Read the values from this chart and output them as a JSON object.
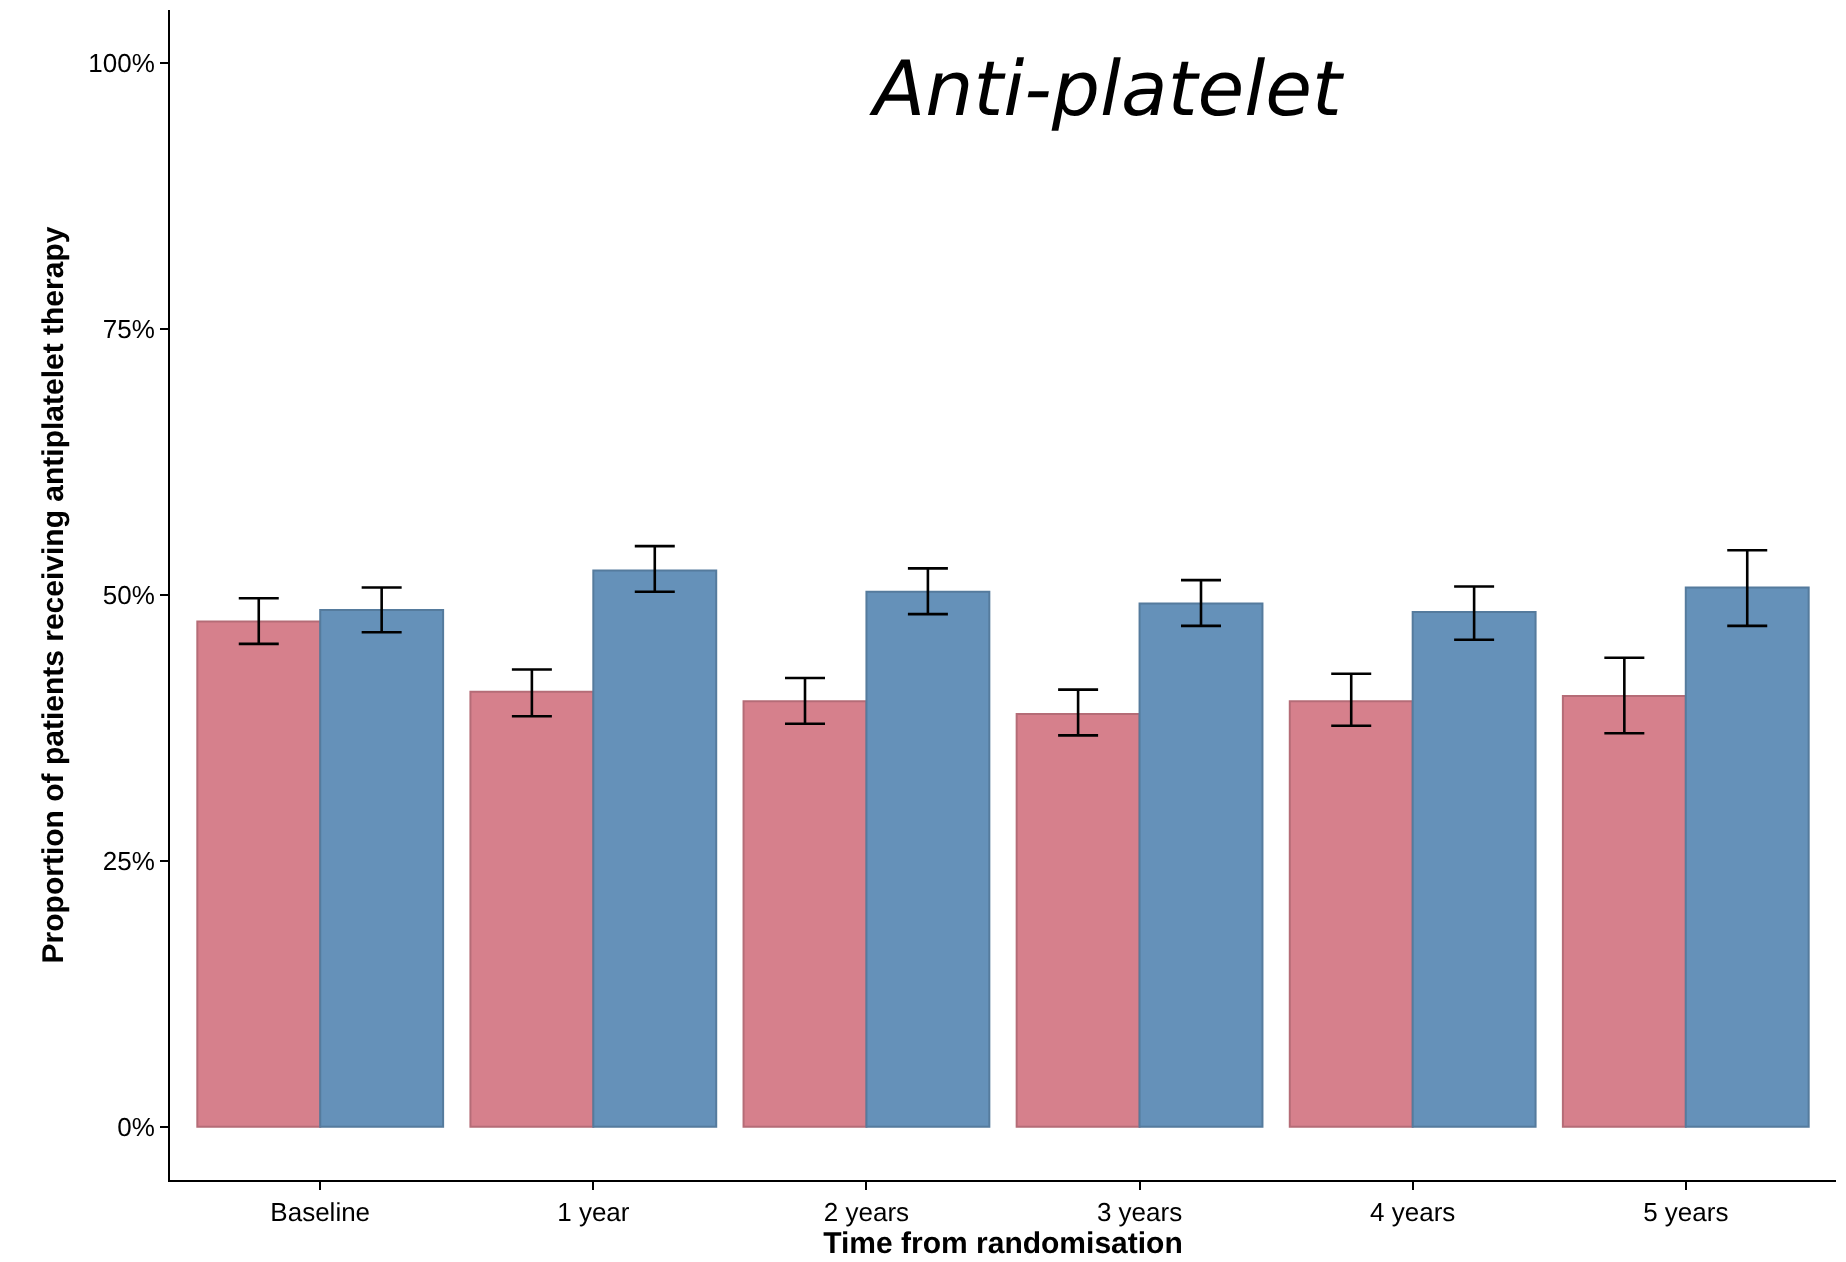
{
  "chart_data": {
    "type": "bar",
    "title": "Anti-platelet",
    "xlabel": "Time from randomisation",
    "ylabel": "Proportion of patients receiving antiplatelet therapy",
    "categories": [
      "Baseline",
      "1 year",
      "2 years",
      "3 years",
      "4 years",
      "5 years"
    ],
    "series": [
      {
        "color": "#d6808c",
        "values": [
          47.5,
          40.9,
          40.0,
          38.8,
          40.0,
          40.5
        ],
        "errors": [
          [
            45.4,
            49.7
          ],
          [
            38.6,
            43.0
          ],
          [
            37.9,
            42.2
          ],
          [
            36.8,
            41.1
          ],
          [
            37.7,
            42.6
          ],
          [
            37.0,
            44.1
          ]
        ]
      },
      {
        "color": "#6591b9",
        "values": [
          48.6,
          52.3,
          50.3,
          49.2,
          48.4,
          50.7
        ],
        "errors": [
          [
            46.5,
            50.7
          ],
          [
            50.3,
            54.6
          ],
          [
            48.2,
            52.5
          ],
          [
            47.1,
            51.4
          ],
          [
            45.8,
            50.8
          ],
          [
            47.1,
            54.2
          ]
        ]
      }
    ],
    "ylim": [
      -5,
      105
    ],
    "yticks": [
      {
        "value": 0,
        "label": "0%"
      },
      {
        "value": 25,
        "label": "25%"
      },
      {
        "value": 50,
        "label": "50%"
      },
      {
        "value": 75,
        "label": "75%"
      },
      {
        "value": 100,
        "label": "100%"
      }
    ],
    "legend": false
  }
}
